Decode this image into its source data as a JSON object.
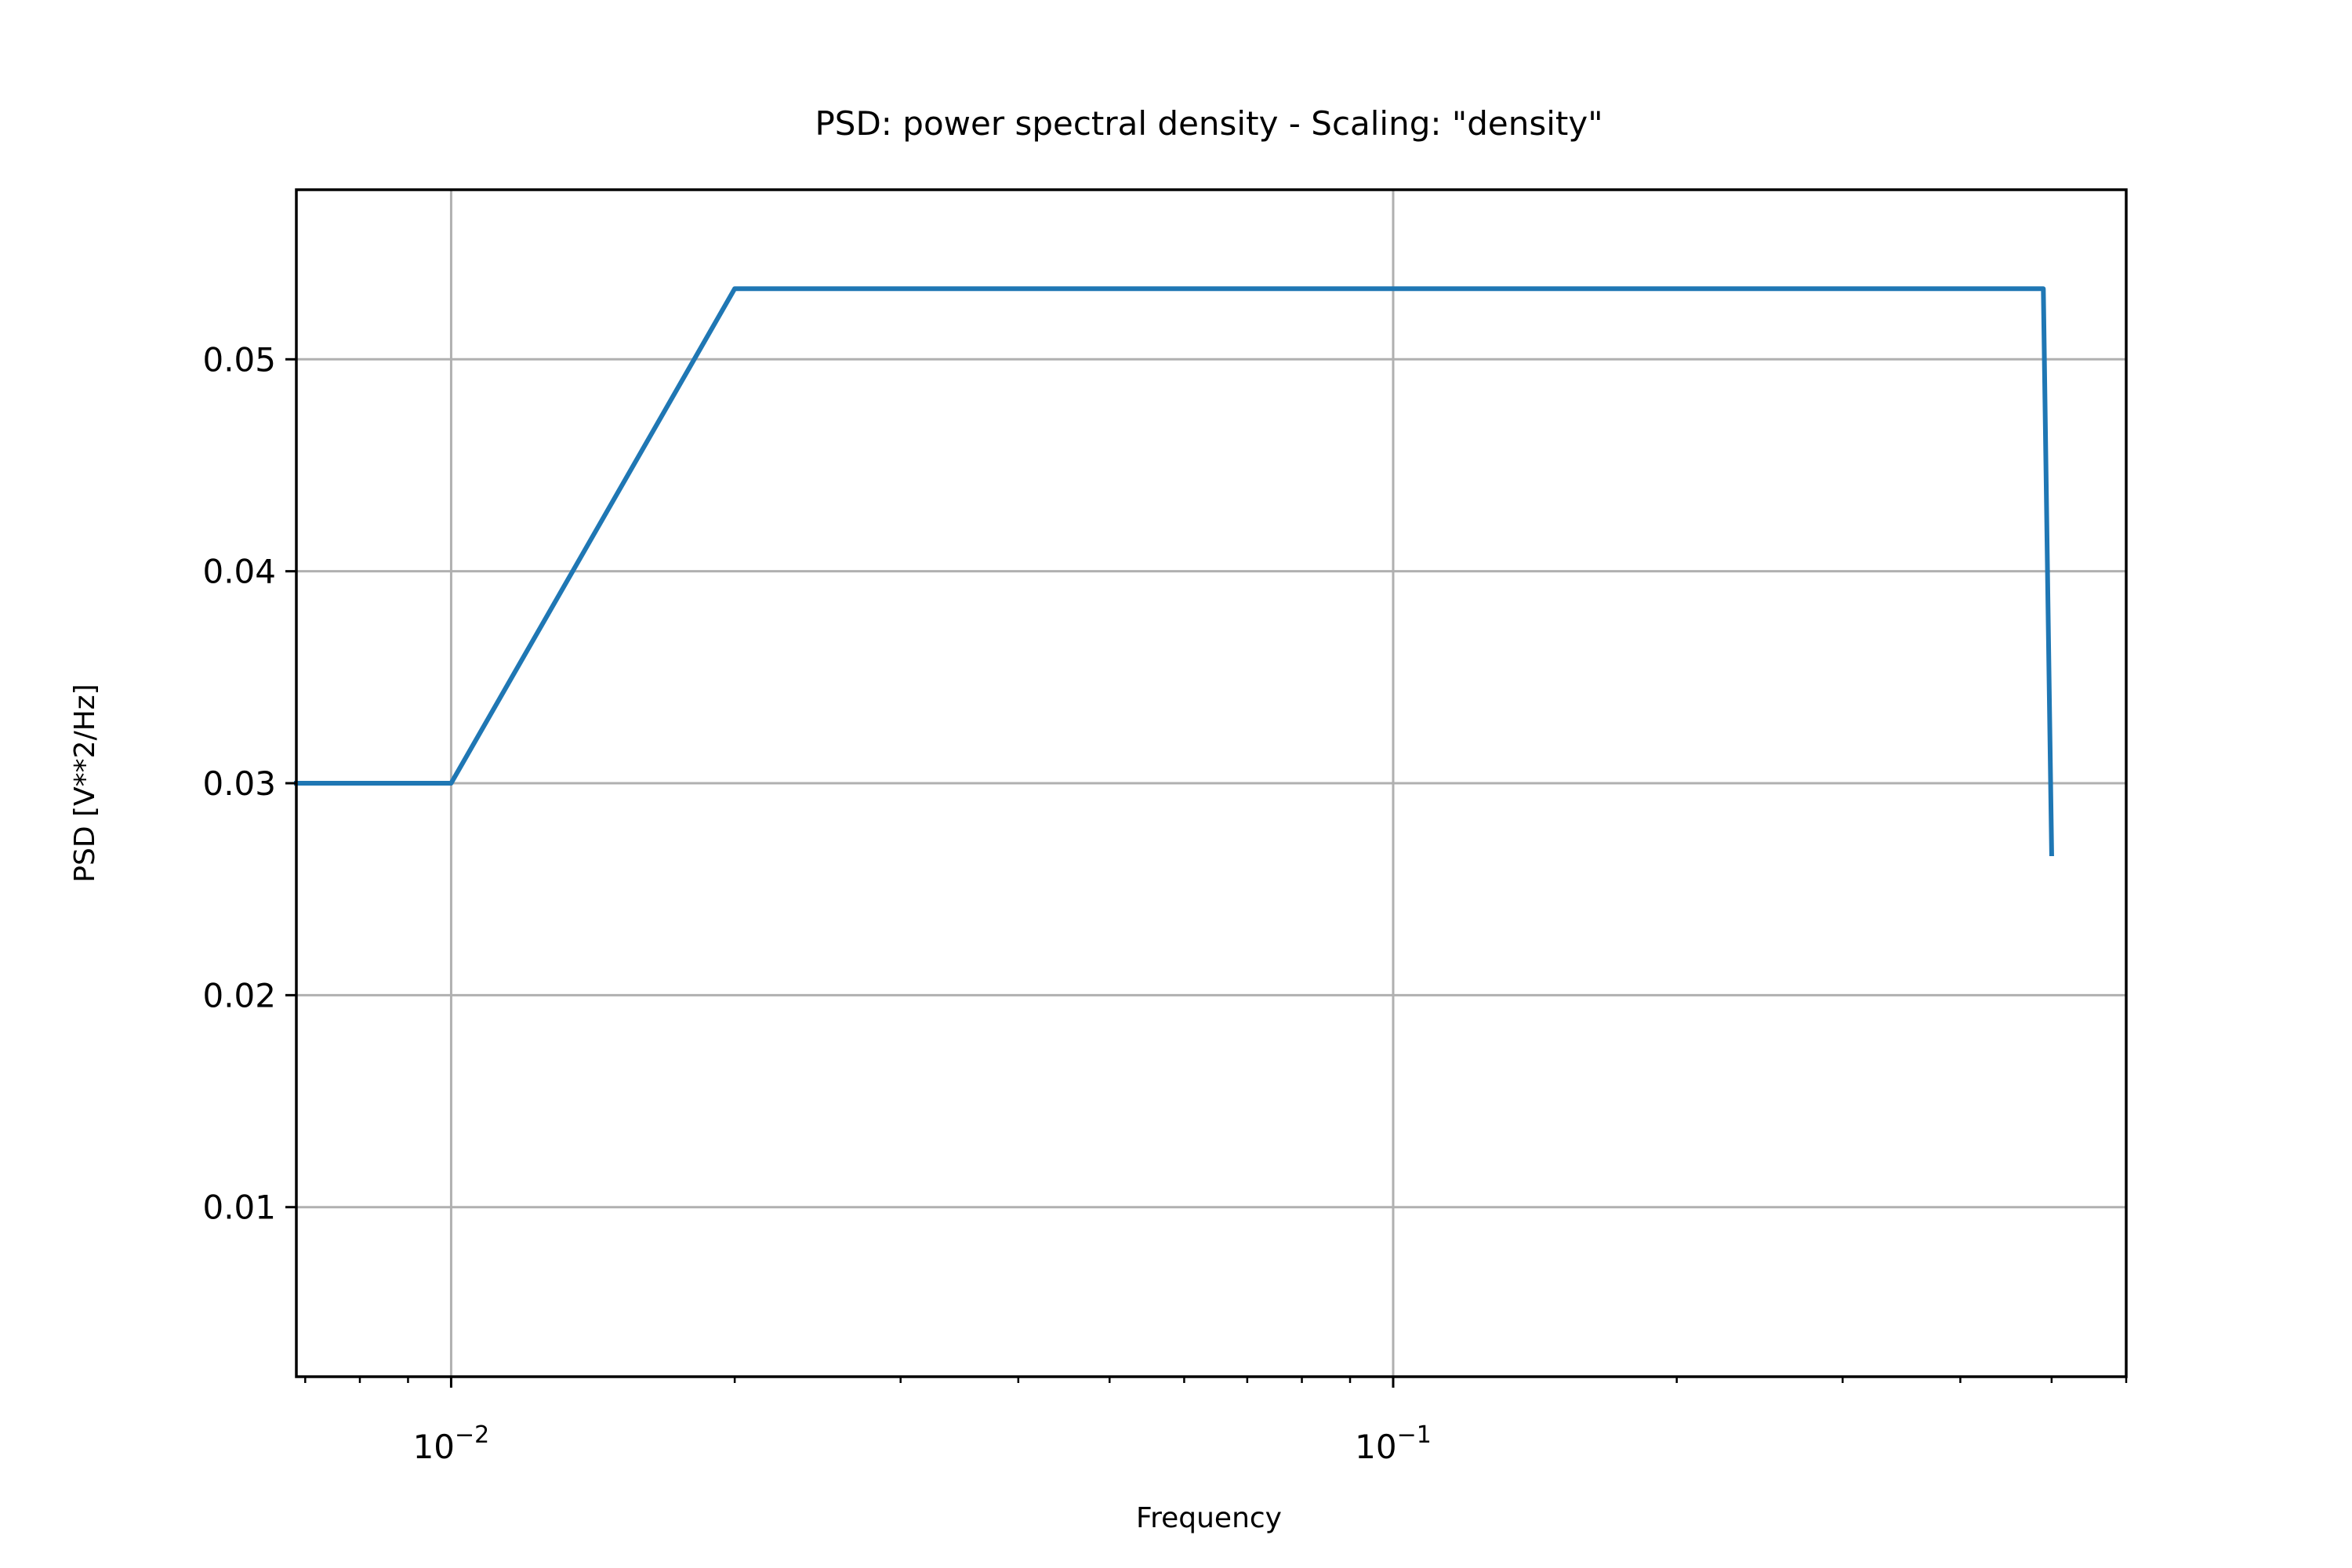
{
  "chart_data": {
    "type": "line",
    "title": "PSD: power spectral density - Scaling: \"density\"",
    "xlabel": "Frequency",
    "ylabel": "PSD [V**2/Hz]",
    "x_scale": "log",
    "y_scale": "linear",
    "xlim": [
      0.00685,
      0.6
    ],
    "ylim": [
      0.002,
      0.058
    ],
    "grid": true,
    "x_major_ticks": [
      {
        "value": 0.01,
        "base": "10",
        "exponent": "−2"
      },
      {
        "value": 0.1,
        "base": "10",
        "exponent": "−1"
      }
    ],
    "x_minor_ticks": [
      0.007,
      0.008,
      0.009,
      0.02,
      0.03,
      0.04,
      0.05,
      0.06,
      0.07,
      0.08,
      0.09,
      0.2,
      0.3,
      0.4,
      0.5,
      0.6
    ],
    "y_ticks": [
      {
        "value": 0.01,
        "label": "0.01"
      },
      {
        "value": 0.02,
        "label": "0.02"
      },
      {
        "value": 0.03,
        "label": "0.03"
      },
      {
        "value": 0.04,
        "label": "0.04"
      },
      {
        "value": 0.05,
        "label": "0.05"
      }
    ],
    "series": [
      {
        "color": "#1f77b4",
        "x": [
          0.00685,
          0.01,
          0.02,
          0.49,
          0.5
        ],
        "y": [
          0.03,
          0.03,
          0.05333,
          0.05333,
          0.02667
        ]
      }
    ]
  }
}
